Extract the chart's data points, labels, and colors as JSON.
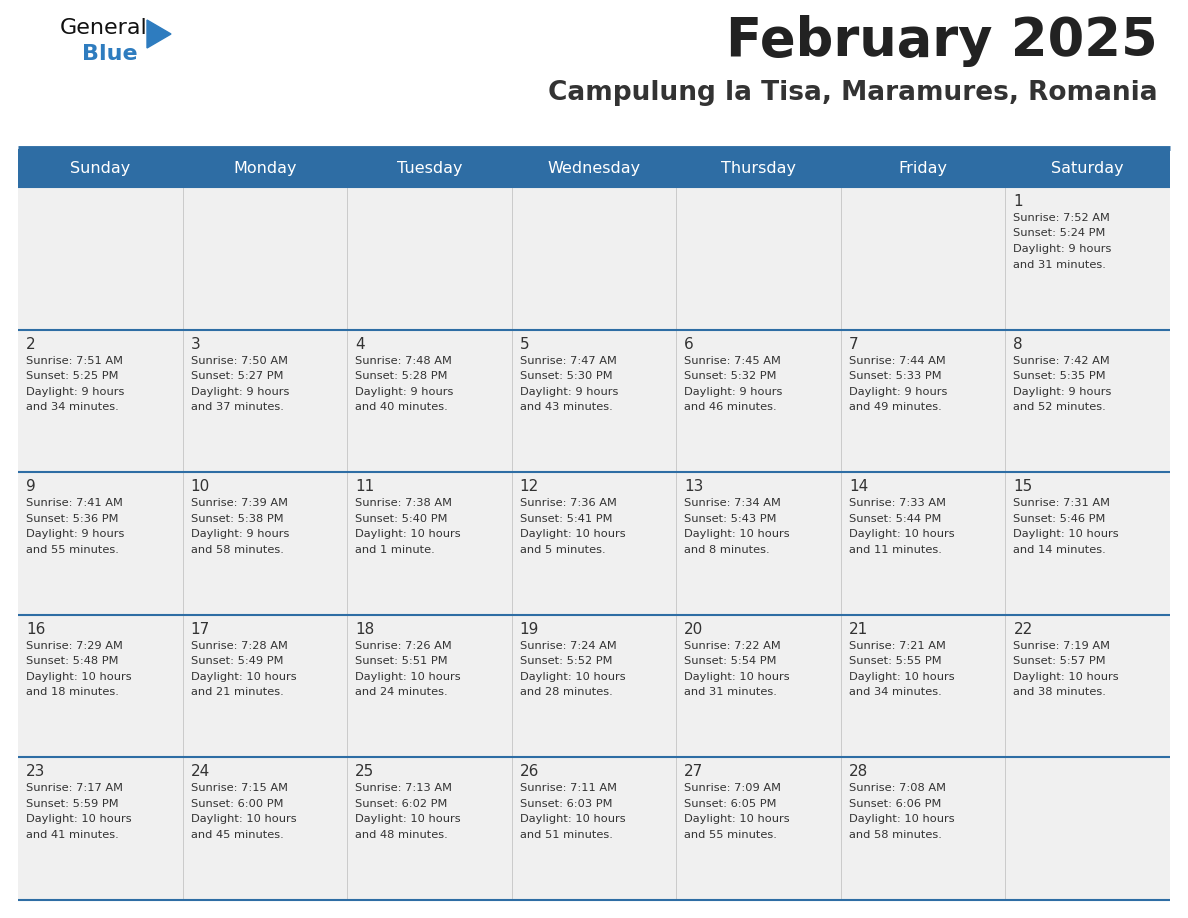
{
  "title": "February 2025",
  "subtitle": "Campulung la Tisa, Maramures, Romania",
  "days_of_week": [
    "Sunday",
    "Monday",
    "Tuesday",
    "Wednesday",
    "Thursday",
    "Friday",
    "Saturday"
  ],
  "header_bg": "#2E6DA4",
  "header_text": "#FFFFFF",
  "cell_bg": "#F0F0F0",
  "divider_color": "#2E6DA4",
  "day_num_color": "#333333",
  "info_text_color": "#333333",
  "title_color": "#222222",
  "subtitle_color": "#333333",
  "logo_general_color": "#111111",
  "logo_blue_color": "#2E7CBF",
  "calendar": [
    [
      null,
      null,
      null,
      null,
      null,
      null,
      {
        "day": 1,
        "sunrise": "7:52 AM",
        "sunset": "5:24 PM",
        "daylight": "9 hours\nand 31 minutes."
      }
    ],
    [
      {
        "day": 2,
        "sunrise": "7:51 AM",
        "sunset": "5:25 PM",
        "daylight": "9 hours\nand 34 minutes."
      },
      {
        "day": 3,
        "sunrise": "7:50 AM",
        "sunset": "5:27 PM",
        "daylight": "9 hours\nand 37 minutes."
      },
      {
        "day": 4,
        "sunrise": "7:48 AM",
        "sunset": "5:28 PM",
        "daylight": "9 hours\nand 40 minutes."
      },
      {
        "day": 5,
        "sunrise": "7:47 AM",
        "sunset": "5:30 PM",
        "daylight": "9 hours\nand 43 minutes."
      },
      {
        "day": 6,
        "sunrise": "7:45 AM",
        "sunset": "5:32 PM",
        "daylight": "9 hours\nand 46 minutes."
      },
      {
        "day": 7,
        "sunrise": "7:44 AM",
        "sunset": "5:33 PM",
        "daylight": "9 hours\nand 49 minutes."
      },
      {
        "day": 8,
        "sunrise": "7:42 AM",
        "sunset": "5:35 PM",
        "daylight": "9 hours\nand 52 minutes."
      }
    ],
    [
      {
        "day": 9,
        "sunrise": "7:41 AM",
        "sunset": "5:36 PM",
        "daylight": "9 hours\nand 55 minutes."
      },
      {
        "day": 10,
        "sunrise": "7:39 AM",
        "sunset": "5:38 PM",
        "daylight": "9 hours\nand 58 minutes."
      },
      {
        "day": 11,
        "sunrise": "7:38 AM",
        "sunset": "5:40 PM",
        "daylight": "10 hours\nand 1 minute."
      },
      {
        "day": 12,
        "sunrise": "7:36 AM",
        "sunset": "5:41 PM",
        "daylight": "10 hours\nand 5 minutes."
      },
      {
        "day": 13,
        "sunrise": "7:34 AM",
        "sunset": "5:43 PM",
        "daylight": "10 hours\nand 8 minutes."
      },
      {
        "day": 14,
        "sunrise": "7:33 AM",
        "sunset": "5:44 PM",
        "daylight": "10 hours\nand 11 minutes."
      },
      {
        "day": 15,
        "sunrise": "7:31 AM",
        "sunset": "5:46 PM",
        "daylight": "10 hours\nand 14 minutes."
      }
    ],
    [
      {
        "day": 16,
        "sunrise": "7:29 AM",
        "sunset": "5:48 PM",
        "daylight": "10 hours\nand 18 minutes."
      },
      {
        "day": 17,
        "sunrise": "7:28 AM",
        "sunset": "5:49 PM",
        "daylight": "10 hours\nand 21 minutes."
      },
      {
        "day": 18,
        "sunrise": "7:26 AM",
        "sunset": "5:51 PM",
        "daylight": "10 hours\nand 24 minutes."
      },
      {
        "day": 19,
        "sunrise": "7:24 AM",
        "sunset": "5:52 PM",
        "daylight": "10 hours\nand 28 minutes."
      },
      {
        "day": 20,
        "sunrise": "7:22 AM",
        "sunset": "5:54 PM",
        "daylight": "10 hours\nand 31 minutes."
      },
      {
        "day": 21,
        "sunrise": "7:21 AM",
        "sunset": "5:55 PM",
        "daylight": "10 hours\nand 34 minutes."
      },
      {
        "day": 22,
        "sunrise": "7:19 AM",
        "sunset": "5:57 PM",
        "daylight": "10 hours\nand 38 minutes."
      }
    ],
    [
      {
        "day": 23,
        "sunrise": "7:17 AM",
        "sunset": "5:59 PM",
        "daylight": "10 hours\nand 41 minutes."
      },
      {
        "day": 24,
        "sunrise": "7:15 AM",
        "sunset": "6:00 PM",
        "daylight": "10 hours\nand 45 minutes."
      },
      {
        "day": 25,
        "sunrise": "7:13 AM",
        "sunset": "6:02 PM",
        "daylight": "10 hours\nand 48 minutes."
      },
      {
        "day": 26,
        "sunrise": "7:11 AM",
        "sunset": "6:03 PM",
        "daylight": "10 hours\nand 51 minutes."
      },
      {
        "day": 27,
        "sunrise": "7:09 AM",
        "sunset": "6:05 PM",
        "daylight": "10 hours\nand 55 minutes."
      },
      {
        "day": 28,
        "sunrise": "7:08 AM",
        "sunset": "6:06 PM",
        "daylight": "10 hours\nand 58 minutes."
      },
      null
    ]
  ]
}
